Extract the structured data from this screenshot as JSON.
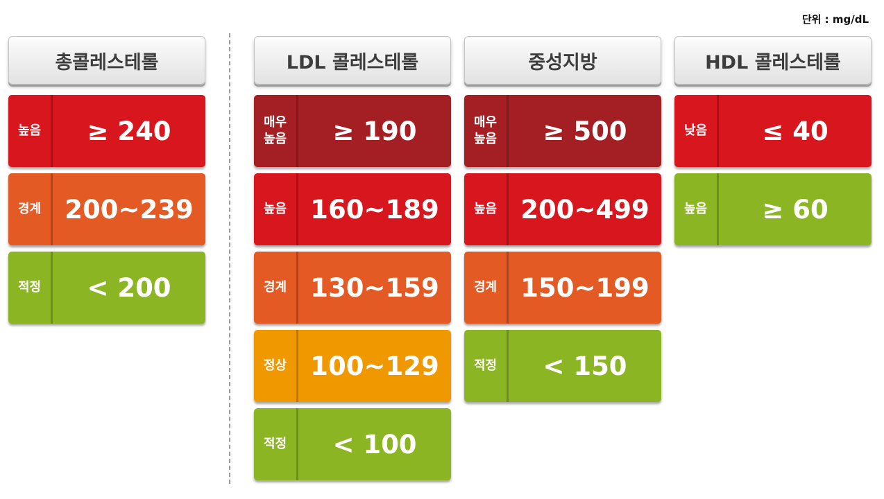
{
  "unit_label": "단위 : mg/dL",
  "colors": {
    "very_high": "#a41f24",
    "high": "#d7161d",
    "borderline": "#e35a24",
    "normal": "#f09800",
    "optimal": "#8cb524"
  },
  "columns": [
    {
      "title": "총콜레스테롤",
      "rows": [
        {
          "label": "높음",
          "value": "≥ 240",
          "level": "high"
        },
        {
          "label": "경계",
          "value": "200~239",
          "level": "borderline"
        },
        {
          "label": "적정",
          "value": "< 200",
          "level": "optimal"
        }
      ]
    },
    {
      "title": "LDL 콜레스테롤",
      "rows": [
        {
          "label": "매우\n높음",
          "value": "≥ 190",
          "level": "very_high"
        },
        {
          "label": "높음",
          "value": "160~189",
          "level": "high"
        },
        {
          "label": "경계",
          "value": "130~159",
          "level": "borderline"
        },
        {
          "label": "정상",
          "value": "100~129",
          "level": "normal"
        },
        {
          "label": "적정",
          "value": "< 100",
          "level": "optimal"
        }
      ]
    },
    {
      "title": "중성지방",
      "rows": [
        {
          "label": "매우\n높음",
          "value": "≥ 500",
          "level": "very_high"
        },
        {
          "label": "높음",
          "value": "200~499",
          "level": "high"
        },
        {
          "label": "경계",
          "value": "150~199",
          "level": "borderline"
        },
        {
          "label": "적정",
          "value": "< 150",
          "level": "optimal"
        }
      ]
    },
    {
      "title": "HDL 콜레스테롤",
      "rows": [
        {
          "label": "낮음",
          "value": "≤ 40",
          "level": "high"
        },
        {
          "label": "높음",
          "value": "≥ 60",
          "level": "optimal"
        }
      ]
    }
  ]
}
